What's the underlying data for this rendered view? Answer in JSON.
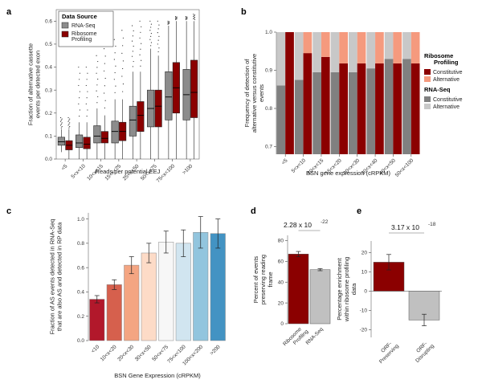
{
  "chart_data": [
    {
      "panel": "a",
      "type": "boxplot",
      "xlabel": "Reads per potential EEJ",
      "ylabel": "Fraction of alternative cassette events per detected exon",
      "ylim": [
        0,
        0.65
      ],
      "yticks": [
        "0.0",
        "0.1",
        "0.2",
        "0.3",
        "0.4",
        "0.5",
        "0.6"
      ],
      "categories": [
        "<5",
        "5<x<10",
        "10<x<15",
        "15<x<25",
        "25<x<50",
        "50<x<75",
        "75<x<100",
        ">100"
      ],
      "legend_title": "Data Source",
      "legend_placement": "top-left",
      "series": [
        {
          "name": "RNA-Seq",
          "color": "#8c8c8c",
          "boxes": [
            {
              "q1": 0.06,
              "median": 0.075,
              "q3": 0.095,
              "wlo": 0.03,
              "whi": 0.13,
              "outlier_max": 0.18
            },
            {
              "q1": 0.05,
              "median": 0.07,
              "q3": 0.105,
              "wlo": 0.0,
              "whi": 0.16,
              "outlier_max": 0.4
            },
            {
              "q1": 0.07,
              "median": 0.1,
              "q3": 0.145,
              "wlo": 0.0,
              "whi": 0.22,
              "outlier_max": 0.45
            },
            {
              "q1": 0.07,
              "median": 0.12,
              "q3": 0.165,
              "wlo": 0.0,
              "whi": 0.26,
              "outlier_max": 0.52
            },
            {
              "q1": 0.1,
              "median": 0.17,
              "q3": 0.23,
              "wlo": 0.0,
              "whi": 0.38,
              "outlier_max": 0.58
            },
            {
              "q1": 0.14,
              "median": 0.22,
              "q3": 0.3,
              "wlo": 0.0,
              "whi": 0.48,
              "outlier_max": 0.6
            },
            {
              "q1": 0.17,
              "median": 0.27,
              "q3": 0.38,
              "wlo": 0.0,
              "whi": 0.58,
              "outlier_max": 0.6
            },
            {
              "q1": 0.17,
              "median": 0.28,
              "q3": 0.39,
              "wlo": 0.0,
              "whi": 0.6,
              "outlier_max": 0.62
            }
          ]
        },
        {
          "name": "Ribosome Profiling",
          "color": "#8b0000",
          "boxes": [
            {
              "q1": 0.04,
              "median": 0.06,
              "q3": 0.08,
              "wlo": 0.0,
              "whi": 0.13,
              "outlier_max": 0.18
            },
            {
              "q1": 0.045,
              "median": 0.065,
              "q3": 0.095,
              "wlo": 0.0,
              "whi": 0.16,
              "outlier_max": 0.4
            },
            {
              "q1": 0.07,
              "median": 0.09,
              "q3": 0.12,
              "wlo": 0.0,
              "whi": 0.19,
              "outlier_max": 0.48
            },
            {
              "q1": 0.08,
              "median": 0.12,
              "q3": 0.16,
              "wlo": 0.0,
              "whi": 0.26,
              "outlier_max": 0.56
            },
            {
              "q1": 0.12,
              "median": 0.19,
              "q3": 0.25,
              "wlo": 0.0,
              "whi": 0.38,
              "outlier_max": 0.6
            },
            {
              "q1": 0.14,
              "median": 0.23,
              "q3": 0.3,
              "wlo": 0.0,
              "whi": 0.45,
              "outlier_max": 0.6
            },
            {
              "q1": 0.2,
              "median": 0.31,
              "q3": 0.42,
              "wlo": 0.0,
              "whi": 0.6,
              "outlier_max": 0.62
            },
            {
              "q1": 0.18,
              "median": 0.29,
              "q3": 0.43,
              "wlo": 0.0,
              "whi": 0.6,
              "outlier_max": 0.63
            }
          ]
        }
      ]
    },
    {
      "panel": "b",
      "type": "bar",
      "stacked": true,
      "xlabel": "BSN gene expression (cRPKM)",
      "ylabel": "Frequency of detection of alternative versus constitutive events",
      "ylim": [
        0.68,
        1.0
      ],
      "yticks": [
        "0.7",
        "0.8",
        "0.9",
        "1.0"
      ],
      "categories": [
        "<5",
        "5<x<10",
        "10<x<15",
        "15<x<20",
        "20<x<30",
        "30<x<40",
        "40<x<50",
        "50<x<100"
      ],
      "constitutive_frequency": {
        "rna_seq": [
          0.86,
          0.875,
          0.895,
          0.895,
          0.895,
          0.905,
          0.93,
          0.93
        ],
        "ribosome_profiling": [
          1.0,
          0.945,
          0.935,
          0.918,
          0.918,
          0.918,
          0.918,
          0.918
        ]
      },
      "legend_placement": "right",
      "legend_groups": [
        {
          "title": "Ribosome Profiling",
          "items": [
            {
              "name": "Constitutive",
              "color": "#8b0000"
            },
            {
              "name": "Alternative",
              "color": "#f59a7e"
            }
          ]
        },
        {
          "title": "RNA-Seq",
          "items": [
            {
              "name": "Constitutive",
              "color": "#808080"
            },
            {
              "name": "Alternative",
              "color": "#c8c8c8"
            }
          ]
        }
      ]
    },
    {
      "panel": "c",
      "type": "bar",
      "xlabel": "BSN Gene Expression (cRPKM)",
      "ylabel": "Fraction of AS events detected in RNA-Seq that are also AS and detected in RP data",
      "ylim": [
        0,
        1.05
      ],
      "yticks": [
        "0.0",
        "0.2",
        "0.4",
        "0.6",
        "0.8",
        "1.0"
      ],
      "categories": [
        "<10",
        "10<x<20",
        "20<x<30",
        "30<x<50",
        "50<x<75",
        "75<x<100",
        "100<x<200",
        ">200"
      ],
      "values": [
        0.34,
        0.46,
        0.62,
        0.72,
        0.81,
        0.8,
        0.89,
        0.88
      ],
      "error": [
        0.03,
        0.04,
        0.07,
        0.08,
        0.09,
        0.11,
        0.13,
        0.12
      ],
      "colors": [
        "#b2182b",
        "#d6604d",
        "#f4a582",
        "#fddbc7",
        "#f7f7f7",
        "#d1e5f0",
        "#92c5de",
        "#4393c3"
      ]
    },
    {
      "panel": "d",
      "type": "bar",
      "ylabel": "Percent of events preserving reading frame",
      "ylim": [
        0,
        85
      ],
      "yticks": [
        "0",
        "20",
        "40",
        "60",
        "80"
      ],
      "categories": [
        "Ribosome Profiling",
        "RNA-Seq"
      ],
      "values": [
        67,
        52
      ],
      "error": [
        2.5,
        1.0
      ],
      "colors": [
        "#8b0000",
        "#c0c0c0"
      ],
      "annotation": {
        "base": "2.28 x 10",
        "exponent": "-22"
      }
    },
    {
      "panel": "e",
      "type": "bar",
      "ylabel": "Percentage enrichment within ribosome profiling data",
      "ylim": [
        -24,
        26
      ],
      "yticks": [
        "-20",
        "-10",
        "0",
        "10",
        "20"
      ],
      "categories": [
        "ORF-Preserving",
        "ORF-Disrupting"
      ],
      "values": [
        15,
        -15
      ],
      "error": [
        4,
        3
      ],
      "colors": [
        "#8b0000",
        "#c0c0c0"
      ],
      "annotation": {
        "base": "3.17 x 10",
        "exponent": "-18"
      }
    }
  ]
}
